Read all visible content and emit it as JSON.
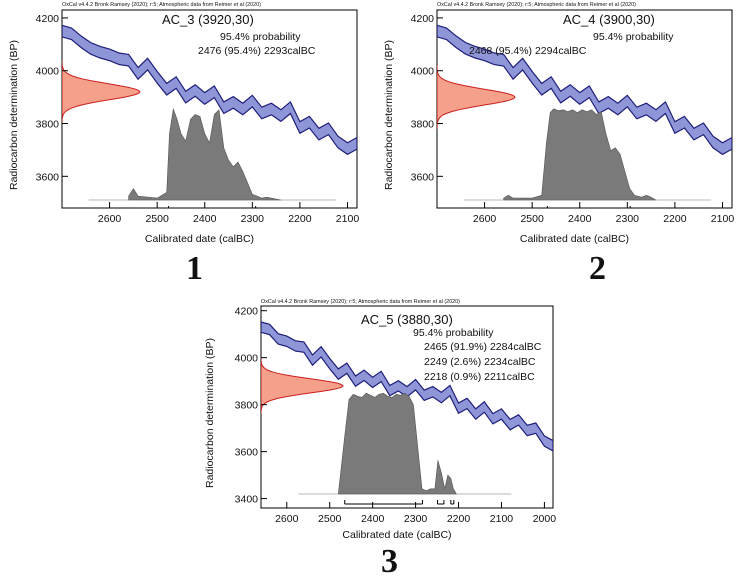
{
  "chart_data": [
    {
      "type": "area",
      "header": "OxCal v4.4.2 Bronk Ramsey (2020); r:5; Atmospheric data from Reimer et al (2020)",
      "title": "AC_3 (3920,30)",
      "probability_label": "95.4% probability",
      "ranges": [
        "2476 (95.4%) 2293calBC"
      ],
      "ranges_bars": [
        [
          2476,
          2293
        ]
      ],
      "xlabel": "Calibrated date (calBC)",
      "ylabel": "Radiocarbon determination (BP)",
      "xlim": [
        2700,
        2080
      ],
      "ylim": [
        3480,
        4230
      ],
      "xticks": [
        2600,
        2500,
        2400,
        2300,
        2200,
        2100
      ],
      "yticks": [
        3600,
        3800,
        4000,
        4200
      ],
      "figure_number": "1",
      "series": [
        {
          "kind": "calibration",
          "x": [
            2700,
            2680,
            2660,
            2640,
            2620,
            2600,
            2580,
            2560,
            2540,
            2520,
            2500,
            2480,
            2460,
            2440,
            2420,
            2400,
            2380,
            2360,
            2340,
            2320,
            2300,
            2280,
            2260,
            2240,
            2220,
            2200,
            2180,
            2160,
            2140,
            2120,
            2100,
            2080
          ],
          "y": [
            4150,
            4140,
            4110,
            4085,
            4070,
            4060,
            4045,
            4040,
            3990,
            4025,
            3975,
            3930,
            3955,
            3900,
            3925,
            3895,
            3920,
            3860,
            3880,
            3855,
            3885,
            3840,
            3855,
            3830,
            3860,
            3785,
            3805,
            3760,
            3780,
            3730,
            3705,
            3725
          ]
        },
        {
          "kind": "measured",
          "mean": 3920,
          "sigma": 30
        },
        {
          "kind": "posterior",
          "x": [
            2560,
            2550,
            2540,
            2500,
            2480,
            2474,
            2466,
            2458,
            2450,
            2440,
            2430,
            2420,
            2410,
            2400,
            2390,
            2380,
            2370,
            2360,
            2350,
            2340,
            2330,
            2320,
            2310,
            2300,
            2290,
            2280,
            2270,
            2260,
            2250,
            2240
          ],
          "y": [
            0.04,
            0.12,
            0.04,
            0.02,
            0.08,
            0.7,
            0.96,
            0.85,
            0.7,
            0.62,
            0.85,
            0.9,
            0.88,
            0.7,
            0.6,
            0.9,
            0.95,
            0.55,
            0.42,
            0.35,
            0.4,
            0.3,
            0.18,
            0.06,
            0.04,
            0.02,
            0.03,
            0.02,
            0.01,
            0
          ]
        }
      ]
    },
    {
      "type": "area",
      "header": "OxCal v4.4.2 Bronk Ramsey (2020); r:5; Atmospheric data from Reimer et al (2020)",
      "title": "AC_4 (3900,30)",
      "probability_label": "95.4% probability",
      "ranges": [
        "2468 (95.4%) 2294calBC"
      ],
      "ranges_bars": [
        [
          2468,
          2294
        ]
      ],
      "xlabel": "Calibrated date (calBC)",
      "ylabel": "Radiocarbon determination (BP)",
      "xlim": [
        2700,
        2080
      ],
      "ylim": [
        3480,
        4230
      ],
      "xticks": [
        2600,
        2500,
        2400,
        2300,
        2200,
        2100
      ],
      "yticks": [
        3600,
        3800,
        4000,
        4200
      ],
      "figure_number": "2",
      "series": [
        {
          "kind": "calibration",
          "x": [
            2700,
            2680,
            2660,
            2640,
            2620,
            2600,
            2580,
            2560,
            2540,
            2520,
            2500,
            2480,
            2460,
            2440,
            2420,
            2400,
            2380,
            2360,
            2340,
            2320,
            2300,
            2280,
            2260,
            2240,
            2220,
            2200,
            2180,
            2160,
            2140,
            2120,
            2100,
            2080
          ],
          "y": [
            4150,
            4140,
            4110,
            4085,
            4070,
            4060,
            4045,
            4040,
            3990,
            4025,
            3975,
            3930,
            3955,
            3900,
            3925,
            3895,
            3920,
            3860,
            3880,
            3855,
            3885,
            3840,
            3855,
            3830,
            3860,
            3785,
            3805,
            3760,
            3780,
            3730,
            3705,
            3725
          ]
        },
        {
          "kind": "measured",
          "mean": 3900,
          "sigma": 30
        },
        {
          "kind": "posterior",
          "x": [
            2560,
            2550,
            2540,
            2500,
            2480,
            2470,
            2462,
            2455,
            2445,
            2435,
            2425,
            2415,
            2405,
            2395,
            2385,
            2375,
            2365,
            2355,
            2345,
            2335,
            2325,
            2315,
            2305,
            2295,
            2285,
            2270,
            2260,
            2250,
            2240
          ],
          "y": [
            0.02,
            0.05,
            0.02,
            0.02,
            0.05,
            0.6,
            0.92,
            0.96,
            0.94,
            0.95,
            0.93,
            0.95,
            0.92,
            0.95,
            0.93,
            0.95,
            0.9,
            0.93,
            0.7,
            0.52,
            0.55,
            0.48,
            0.3,
            0.12,
            0.05,
            0.03,
            0.05,
            0.03,
            0
          ]
        }
      ]
    },
    {
      "type": "area",
      "header": "OxCal v4.4.2 Bronk Ramsey (2020); r:5; Atmospheric data from Reimer et al (2020)",
      "title": "AC_5 (3880,30)",
      "probability_label": "95.4% probability",
      "ranges": [
        "2465 (91.9%) 2284calBC",
        "2249 (2.6%) 2234calBC",
        "2218 (0.9%) 2211calBC"
      ],
      "ranges_bars": [
        [
          2465,
          2284
        ],
        [
          2249,
          2234
        ],
        [
          2218,
          2211
        ]
      ],
      "xlabel": "Calibrated date (calBC)",
      "ylabel": "Radiocarbon determination (BP)",
      "xlim": [
        2660,
        1980
      ],
      "ylim": [
        3360,
        4220
      ],
      "xticks": [
        2600,
        2500,
        2400,
        2300,
        2200,
        2100,
        2000
      ],
      "yticks": [
        3400,
        3600,
        3800,
        4000,
        4200
      ],
      "figure_number": "3",
      "series": [
        {
          "kind": "calibration",
          "x": [
            2660,
            2640,
            2620,
            2600,
            2580,
            2560,
            2540,
            2520,
            2500,
            2480,
            2460,
            2440,
            2420,
            2400,
            2380,
            2360,
            2340,
            2320,
            2300,
            2280,
            2260,
            2240,
            2220,
            2200,
            2180,
            2160,
            2140,
            2120,
            2100,
            2080,
            2060,
            2040,
            2020,
            2000,
            1980
          ],
          "y": [
            4130,
            4120,
            4080,
            4070,
            4050,
            4045,
            3990,
            4025,
            3975,
            3930,
            3955,
            3900,
            3925,
            3895,
            3920,
            3860,
            3880,
            3855,
            3885,
            3840,
            3855,
            3830,
            3860,
            3785,
            3805,
            3760,
            3790,
            3740,
            3760,
            3715,
            3735,
            3690,
            3700,
            3645,
            3625
          ]
        },
        {
          "kind": "measured",
          "mean": 3880,
          "sigma": 30
        },
        {
          "kind": "posterior",
          "x": [
            2480,
            2465,
            2455,
            2445,
            2435,
            2425,
            2415,
            2405,
            2395,
            2385,
            2375,
            2365,
            2355,
            2345,
            2335,
            2325,
            2315,
            2305,
            2295,
            2285,
            2275,
            2265,
            2255,
            2248,
            2240,
            2232,
            2225,
            2218,
            2212,
            2205
          ],
          "y": [
            0,
            0.55,
            0.9,
            0.95,
            0.93,
            0.92,
            0.96,
            0.94,
            0.92,
            0.95,
            0.96,
            0.93,
            0.92,
            0.95,
            0.94,
            0.96,
            0.93,
            0.85,
            0.45,
            0.05,
            0.03,
            0.05,
            0.05,
            0.32,
            0.2,
            0.05,
            0.18,
            0.15,
            0.05,
            0
          ]
        }
      ]
    }
  ]
}
